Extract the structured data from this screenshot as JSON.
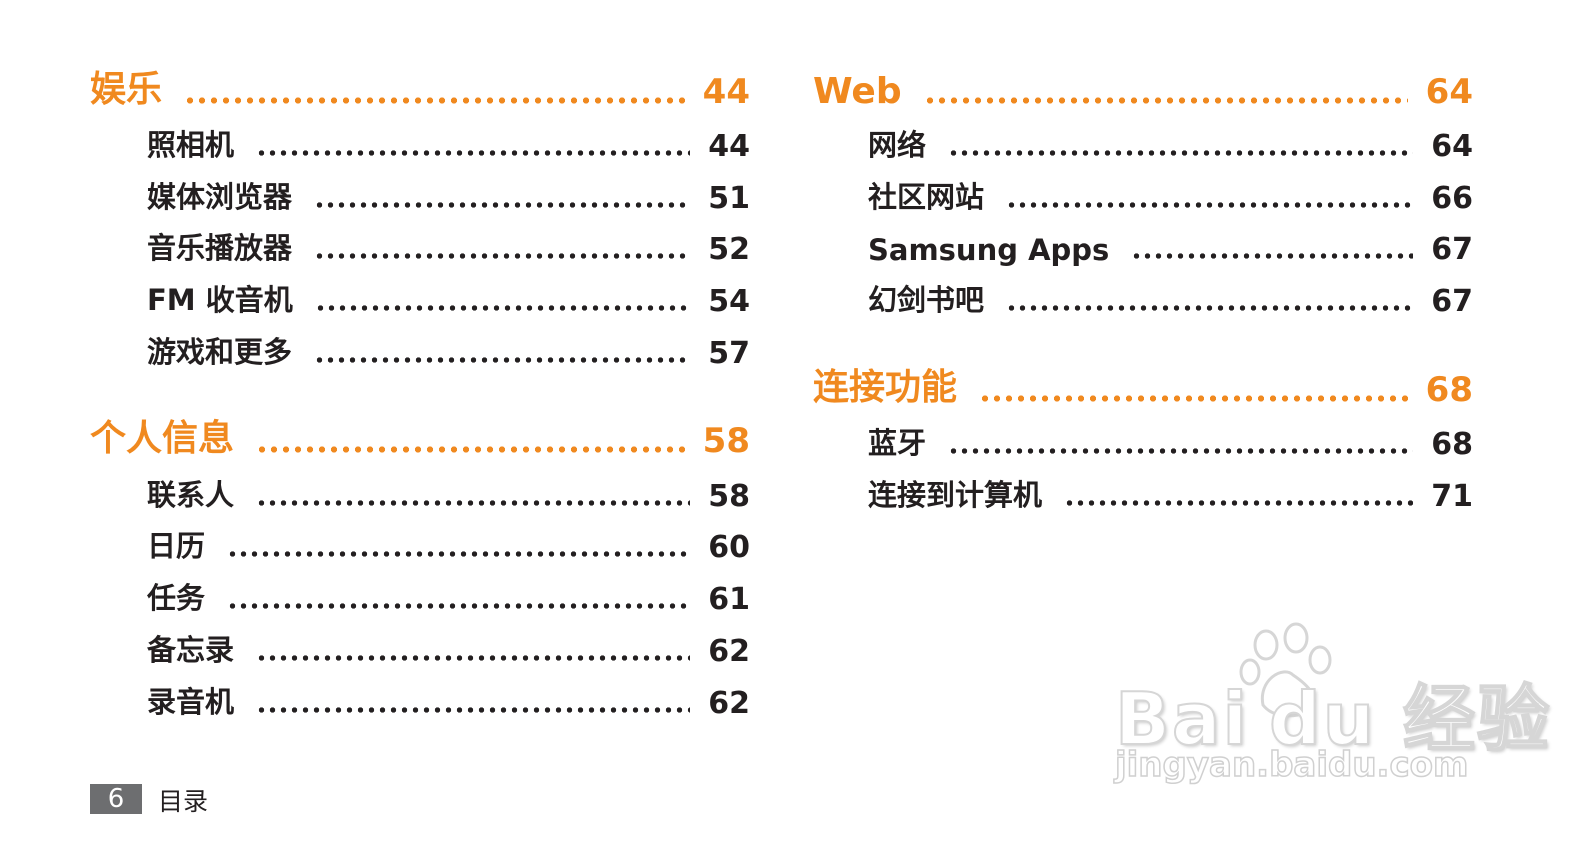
{
  "colors": {
    "accent": "#f0891f",
    "text": "#231f20",
    "footer_box": "#6d6e70"
  },
  "left": [
    {
      "title": "娱乐",
      "page": "44",
      "items": [
        {
          "label": "照相机",
          "page": "44"
        },
        {
          "label": "媒体浏览器",
          "page": "51"
        },
        {
          "label": "音乐播放器",
          "page": "52"
        },
        {
          "label": "FM 收音机",
          "page": "54"
        },
        {
          "label": "游戏和更多",
          "page": "57"
        }
      ]
    },
    {
      "title": "个人信息",
      "page": "58",
      "items": [
        {
          "label": "联系人",
          "page": "58"
        },
        {
          "label": "日历",
          "page": "60"
        },
        {
          "label": "任务",
          "page": "61"
        },
        {
          "label": "备忘录",
          "page": "62"
        },
        {
          "label": "录音机",
          "page": "62"
        }
      ]
    }
  ],
  "right": [
    {
      "title": "Web",
      "page": "64",
      "items": [
        {
          "label": "网络",
          "page": "64"
        },
        {
          "label": "社区网站",
          "page": "66"
        },
        {
          "label": "Samsung Apps",
          "page": "67"
        },
        {
          "label": "幻剑书吧",
          "page": "67"
        }
      ]
    },
    {
      "title": "连接功能",
      "page": "68",
      "items": [
        {
          "label": "蓝牙",
          "page": "68"
        },
        {
          "label": "连接到计算机",
          "page": "71"
        }
      ]
    }
  ],
  "footer": {
    "page_number": "6",
    "title": "目录"
  },
  "watermark": {
    "brand": "Bai du 经验",
    "url": "jingyan.baidu.com"
  }
}
